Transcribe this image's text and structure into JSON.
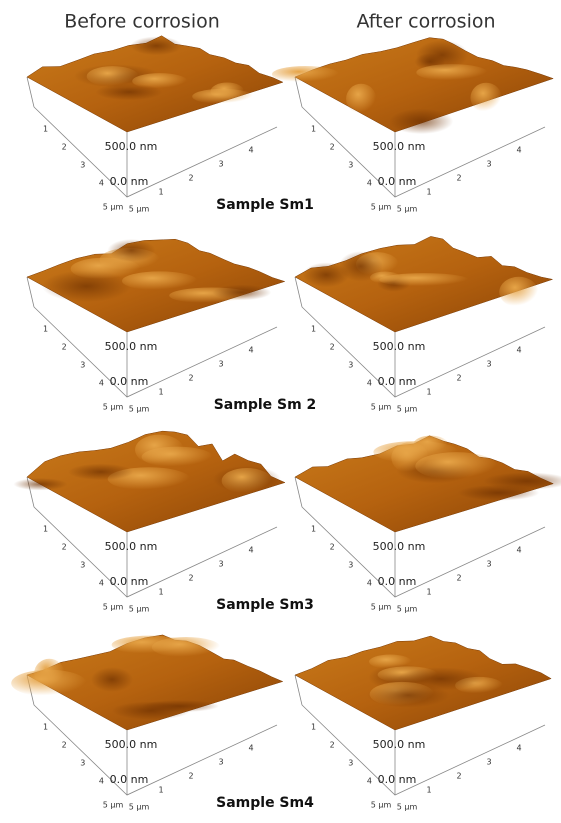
{
  "header": {
    "left": "Before corrosion",
    "right": "After corrosion"
  },
  "rows": [
    {
      "label": "Sample Sm1"
    },
    {
      "label": "Sample Sm 2"
    },
    {
      "label": "Sample Sm3"
    },
    {
      "label": "Sample Sm4"
    }
  ],
  "panels": [
    {
      "z_top": "500.0 nm",
      "z_bottom": "0.0 nm",
      "x_end": "5 µm",
      "y_end": "5 µm",
      "x_ticks": [
        "1",
        "2",
        "3",
        "4"
      ],
      "y_ticks": [
        "1",
        "2",
        "3",
        "4"
      ]
    },
    {
      "z_top": "500.0 nm",
      "z_bottom": "0.0 nm",
      "x_end": "5 µm",
      "y_end": "5 µm",
      "x_ticks": [
        "1",
        "2",
        "3",
        "4"
      ],
      "y_ticks": [
        "1",
        "2",
        "3",
        "4"
      ]
    },
    {
      "z_top": "500.0 nm",
      "z_bottom": "0.0 nm",
      "x_end": "5 µm",
      "y_end": "5 µm",
      "x_ticks": [
        "1",
        "2",
        "3",
        "4"
      ],
      "y_ticks": [
        "1",
        "2",
        "3",
        "4"
      ]
    },
    {
      "z_top": "500.0 nm",
      "z_bottom": "0.0 nm",
      "x_end": "5 µm",
      "y_end": "5 µm",
      "x_ticks": [
        "1",
        "2",
        "3",
        "4"
      ],
      "y_ticks": [
        "1",
        "2",
        "3",
        "4"
      ]
    },
    {
      "z_top": "500.0 nm",
      "z_bottom": "0.0 nm",
      "x_end": "5 µm",
      "y_end": "5 µm",
      "x_ticks": [
        "1",
        "2",
        "3",
        "4"
      ],
      "y_ticks": [
        "1",
        "2",
        "3",
        "4"
      ]
    },
    {
      "z_top": "500.0 nm",
      "z_bottom": "0.0 nm",
      "x_end": "5 µm",
      "y_end": "5 µm",
      "x_ticks": [
        "1",
        "2",
        "3",
        "4"
      ],
      "y_ticks": [
        "1",
        "2",
        "3",
        "4"
      ]
    },
    {
      "z_top": "500.0 nm",
      "z_bottom": "0.0 nm",
      "x_end": "5 µm",
      "y_end": "5 µm",
      "x_ticks": [
        "1",
        "2",
        "3",
        "4"
      ],
      "y_ticks": [
        "1",
        "2",
        "3",
        "4"
      ]
    },
    {
      "z_top": "500.0 nm",
      "z_bottom": "0.0 nm",
      "x_end": "5 µm",
      "y_end": "5 µm",
      "x_ticks": [
        "1",
        "2",
        "3",
        "4"
      ],
      "y_ticks": [
        "1",
        "2",
        "3",
        "4"
      ]
    }
  ]
}
